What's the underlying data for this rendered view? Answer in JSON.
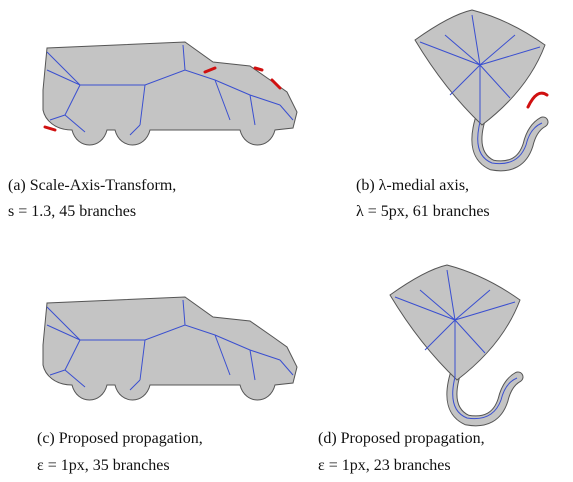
{
  "panels": [
    {
      "label": "(a)",
      "caption": [
        "Scale-Axis-Transform,",
        "s = 1.3, 45 branches"
      ]
    },
    {
      "label": "(b)",
      "caption": [
        "λ-medial axis,",
        "λ = 5px, 61 branches"
      ]
    },
    {
      "label": "(c)",
      "caption": [
        "Proposed propagation,",
        "ε = 1px, 35 branches"
      ]
    },
    {
      "label": "(d)",
      "caption": [
        "Proposed propagation,",
        "ε = 1px, 23 branches"
      ]
    }
  ]
}
